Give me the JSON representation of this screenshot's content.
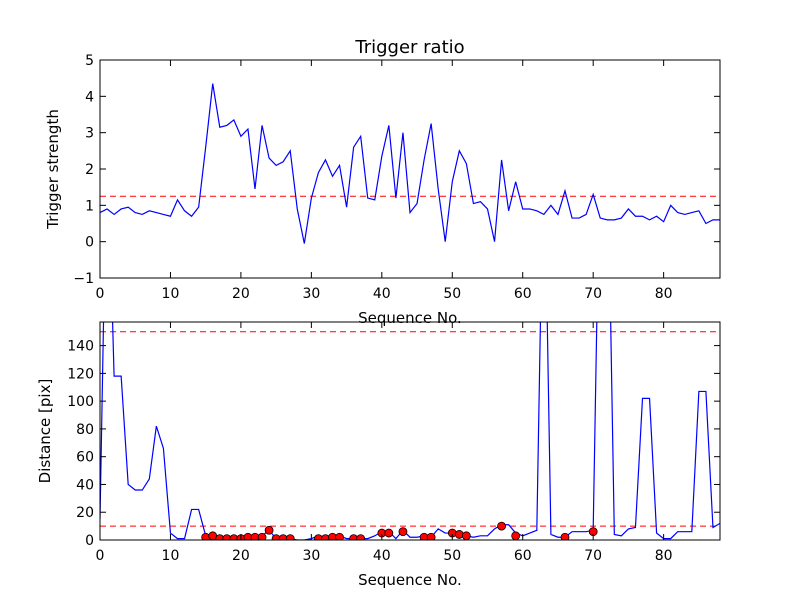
{
  "chart_data": [
    {
      "type": "line",
      "title": "Trigger ratio",
      "xlabel": "Sequence No.",
      "ylabel": "Trigger strength",
      "xlim": [
        0,
        88
      ],
      "ylim": [
        -1,
        5
      ],
      "xticks": [
        "0",
        "10",
        "20",
        "30",
        "40",
        "50",
        "60",
        "70",
        "80"
      ],
      "yticks": [
        "−1",
        "0",
        "1",
        "2",
        "3",
        "4",
        "5"
      ],
      "grid": false,
      "line_color": "#0000ff",
      "threshold": {
        "y": 1.25,
        "color": "#ff0000",
        "style": "dashed"
      },
      "x": [
        0,
        1,
        2,
        3,
        4,
        5,
        6,
        7,
        8,
        9,
        10,
        11,
        12,
        13,
        14,
        15,
        16,
        17,
        18,
        19,
        20,
        21,
        22,
        23,
        24,
        25,
        26,
        27,
        28,
        29,
        30,
        31,
        32,
        33,
        34,
        35,
        36,
        37,
        38,
        39,
        40,
        41,
        42,
        43,
        44,
        45,
        46,
        47,
        48,
        49,
        50,
        51,
        52,
        53,
        54,
        55,
        56,
        57,
        58,
        59,
        60,
        61,
        62,
        63,
        64,
        65,
        66,
        67,
        68,
        69,
        70,
        71,
        72,
        73,
        74,
        75,
        76,
        77,
        78,
        79,
        80,
        81,
        82,
        83,
        84,
        85,
        86,
        87,
        88
      ],
      "y": [
        0.8,
        0.9,
        0.75,
        0.9,
        0.95,
        0.8,
        0.75,
        0.85,
        0.8,
        0.75,
        0.7,
        1.15,
        0.85,
        0.7,
        0.95,
        2.6,
        4.35,
        3.15,
        3.2,
        3.35,
        2.9,
        3.1,
        1.45,
        3.2,
        2.3,
        2.1,
        2.2,
        2.5,
        0.9,
        -0.05,
        1.2,
        1.9,
        2.25,
        1.8,
        2.1,
        0.95,
        2.6,
        2.9,
        1.2,
        1.15,
        2.35,
        3.2,
        1.2,
        3.0,
        0.8,
        1.05,
        2.25,
        3.25,
        1.45,
        0.0,
        1.65,
        2.5,
        2.15,
        1.05,
        1.1,
        0.9,
        0.0,
        2.25,
        0.85,
        1.65,
        0.9,
        0.9,
        0.85,
        0.75,
        1.0,
        0.75,
        1.4,
        0.65,
        0.65,
        0.75,
        1.3,
        0.65,
        0.6,
        0.6,
        0.65,
        0.9,
        0.7,
        0.7,
        0.6,
        0.7,
        0.55,
        1.0,
        0.8,
        0.75,
        0.8,
        0.85,
        0.5,
        0.6,
        0.6
      ]
    },
    {
      "type": "line",
      "title": "",
      "xlabel": "Sequence No.",
      "ylabel": "Distance [pix]",
      "xlim": [
        0,
        88
      ],
      "ylim": [
        0,
        157
      ],
      "xticks": [
        "0",
        "10",
        "20",
        "30",
        "40",
        "50",
        "60",
        "70",
        "80"
      ],
      "yticks": [
        "0",
        "20",
        "40",
        "60",
        "80",
        "100",
        "120",
        "140"
      ],
      "grid": false,
      "line_color": "#0000ff",
      "marker_color": "#ff0000",
      "thresholds": [
        {
          "y": 150,
          "color": "#ff0000",
          "style": "dashed"
        },
        {
          "y": 10,
          "color": "#ff0000",
          "style": "dashed"
        }
      ],
      "x": [
        0,
        1,
        2,
        3,
        4,
        5,
        6,
        7,
        8,
        9,
        10,
        11,
        12,
        13,
        14,
        15,
        16,
        17,
        18,
        19,
        20,
        21,
        22,
        23,
        24,
        25,
        26,
        27,
        28,
        29,
        30,
        31,
        32,
        33,
        34,
        35,
        36,
        37,
        38,
        39,
        40,
        41,
        42,
        43,
        44,
        45,
        46,
        47,
        48,
        49,
        50,
        51,
        52,
        53,
        54,
        55,
        56,
        57,
        58,
        59,
        60,
        61,
        62,
        63,
        64,
        65,
        66,
        67,
        68,
        69,
        70,
        71,
        72,
        73,
        74,
        75,
        76,
        77,
        78,
        79,
        80,
        81,
        82,
        83,
        84,
        85,
        86,
        87,
        88
      ],
      "y": [
        15,
        300,
        118,
        118,
        40,
        36,
        36,
        44,
        82,
        66,
        5,
        1,
        1,
        22,
        22,
        3,
        4,
        1,
        1,
        1,
        2,
        2,
        2,
        3,
        7,
        1,
        1,
        1,
        0,
        0,
        1,
        3,
        2,
        2,
        3,
        1,
        1,
        1,
        1,
        3,
        6,
        6,
        1,
        7,
        2,
        2,
        3,
        2,
        8,
        5,
        5,
        2,
        3,
        2,
        3,
        3,
        8,
        11,
        11,
        5,
        3,
        5,
        7,
        300,
        4,
        2,
        2,
        6,
        6,
        6,
        7,
        300,
        300,
        4,
        3,
        8,
        9,
        102,
        102,
        5,
        1,
        1,
        6,
        6,
        6,
        107,
        107,
        9,
        12
      ],
      "markers": {
        "x": [
          15,
          16,
          17,
          18,
          19,
          20,
          21,
          22,
          23,
          24,
          25,
          26,
          27,
          31,
          32,
          33,
          34,
          36,
          37,
          40,
          41,
          43,
          46,
          47,
          50,
          51,
          52,
          57,
          59,
          66,
          70
        ],
        "y": [
          2,
          3,
          1,
          1,
          1,
          1,
          2,
          2,
          2,
          7,
          1,
          1,
          1,
          1,
          1,
          2,
          2,
          1,
          1,
          5,
          5,
          6,
          2,
          2,
          5,
          4,
          3,
          10,
          3,
          2,
          6
        ]
      }
    }
  ]
}
